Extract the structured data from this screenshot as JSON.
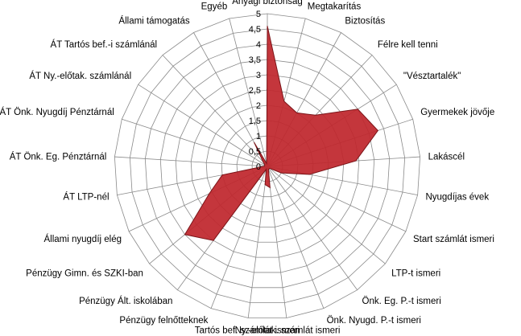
{
  "chart_data": {
    "type": "radar",
    "categories": [
      "Anyagi biztonság",
      "Megtakarítás",
      "Biztosítás",
      "Félre kell tenni",
      "\"Vésztartalék\"",
      "Gyermekek jövője",
      "Lakáscél",
      "Nyugdíjas évek",
      "Start számlát  ismeri",
      "LTP-t ismeri",
      "Önk. Eg. P.-t ismeri",
      "Önk. Nyugd.  P.-t ismeri",
      "Ny.-előtak. számlát  ismeri",
      "Tartós bef. számlát  ismeri",
      "Pénzügy felnőtteknek",
      "Pénzügy Ált. iskolában",
      "Pénzügy Gimn.  és SZKI-ban",
      "Állami nyugdíj elég",
      "ÁT  LTP-nél",
      "ÁT Önk.  Eg.  Pénztárnál",
      "ÁT Önk.  Nyugdíj  Pénztárnál",
      "ÁT Ny.-előtak.  számlánál",
      "ÁT Tartós bef.-i számlánál",
      "Állami támogatás",
      "Egyéb"
    ],
    "series": [
      {
        "values": [
          4.6,
          2.2,
          2.0,
          2.3,
          3.5,
          3.8,
          2.9,
          1.4,
          0.5,
          0.1,
          0.1,
          0.1,
          0.7,
          0.6,
          0.1,
          3.0,
          3.5,
          2.1,
          1.5,
          0.1,
          0.1,
          0.1,
          0.2,
          0.9,
          0.1
        ],
        "color": "#C0272D",
        "stroke": "#7A1418"
      }
    ],
    "rlim": [
      0,
      5
    ],
    "ticks": [
      "0",
      "0,5",
      "1",
      "1,5",
      "2",
      "2,5",
      "3",
      "3,5",
      "4",
      "4,5",
      "5"
    ],
    "grid": true,
    "legend": "none"
  }
}
